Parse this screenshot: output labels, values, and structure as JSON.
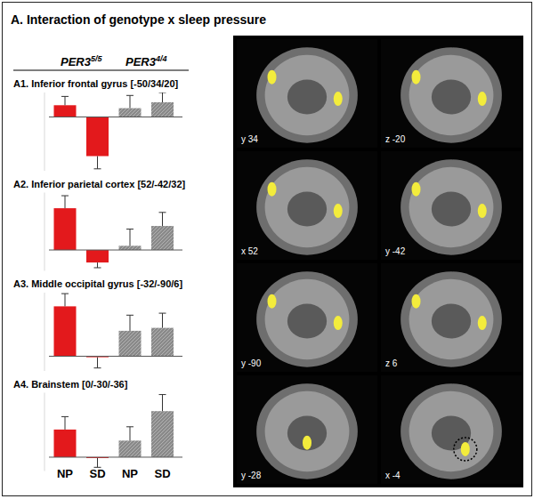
{
  "figure": {
    "title": "A. Interaction of genotype x sleep pressure",
    "image_labels": [
      "y 34",
      "z -20",
      "x 52",
      "y -42",
      "y -90",
      "z 6",
      "y -28",
      "x -4"
    ]
  },
  "chart_data": [
    {
      "type": "bar",
      "title": "A1. Inferior frontal gyrus [-50/34/20]",
      "categories": [
        "NP",
        "SD"
      ],
      "series": [
        {
          "name": "PER3",
          "superscript": "5/5",
          "color": "#e3191c",
          "values": [
            1.2,
            -4.0
          ],
          "errors": [
            0.9,
            1.3
          ]
        },
        {
          "name": "PER3",
          "superscript": "4/4",
          "color": "#8a8a8a",
          "values": [
            0.9,
            1.5
          ],
          "errors": [
            1.3,
            1.0
          ]
        }
      ],
      "ylim": [
        -5.5,
        2.5
      ],
      "tick_labels": false
    },
    {
      "type": "bar",
      "title": "A2. Inferior parietal cortex [52/-42/32]",
      "categories": [
        "NP",
        "SD"
      ],
      "series": [
        {
          "name": "PER3",
          "superscript": "5/5",
          "color": "#e3191c",
          "values": [
            4.0,
            -1.2
          ],
          "errors": [
            1.2,
            0.5
          ]
        },
        {
          "name": "PER3",
          "superscript": "4/4",
          "color": "#8a8a8a",
          "values": [
            0.4,
            2.3
          ],
          "errors": [
            1.6,
            1.3
          ]
        }
      ],
      "ylim": [
        -2,
        5.5
      ],
      "tick_labels": false
    },
    {
      "type": "bar",
      "title": "A3. Middle occipital gyrus [-32/-90/6]",
      "categories": [
        "NP",
        "SD"
      ],
      "series": [
        {
          "name": "PER3",
          "superscript": "5/5",
          "color": "#e3191c",
          "values": [
            5.1,
            -0.1
          ],
          "errors": [
            1.3,
            1.1
          ]
        },
        {
          "name": "PER3",
          "superscript": "4/4",
          "color": "#8a8a8a",
          "values": [
            2.6,
            2.9
          ],
          "errors": [
            1.6,
            1.5
          ]
        }
      ],
      "ylim": [
        -1.5,
        6.5
      ],
      "tick_labels": false
    },
    {
      "type": "bar",
      "title": "A4. Brainstem  [0/-30/-36]",
      "categories": [
        "NP",
        "SD"
      ],
      "series": [
        {
          "name": "PER3",
          "superscript": "5/5",
          "color": "#e3191c",
          "values": [
            3.0,
            -0.1
          ],
          "errors": [
            1.4,
            1.0
          ]
        },
        {
          "name": "PER3",
          "superscript": "4/4",
          "color": "#8a8a8a",
          "values": [
            1.8,
            5.0
          ],
          "errors": [
            1.5,
            1.8
          ]
        }
      ],
      "ylim": [
        -1.5,
        7
      ],
      "tick_labels": false
    }
  ]
}
